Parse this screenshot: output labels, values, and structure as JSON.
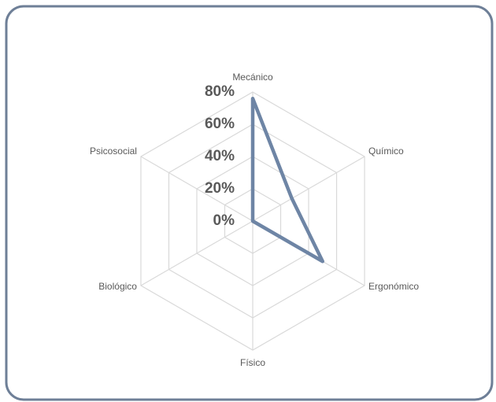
{
  "chart_data": {
    "type": "radar",
    "categories": [
      "Mecánico",
      "Químico",
      "Ergonómico",
      "Físico",
      "Biológico",
      "Psicosocial"
    ],
    "values": [
      76,
      28,
      50,
      0,
      0,
      0
    ],
    "color": "#6e85a5",
    "ylim": [
      0,
      80
    ],
    "yticks": [
      {
        "value": 0,
        "label": "0%"
      },
      {
        "value": 20,
        "label": "20%"
      },
      {
        "value": 40,
        "label": "40%"
      },
      {
        "value": 60,
        "label": "60%"
      },
      {
        "value": 80,
        "label": "80%"
      }
    ],
    "grid": true
  }
}
